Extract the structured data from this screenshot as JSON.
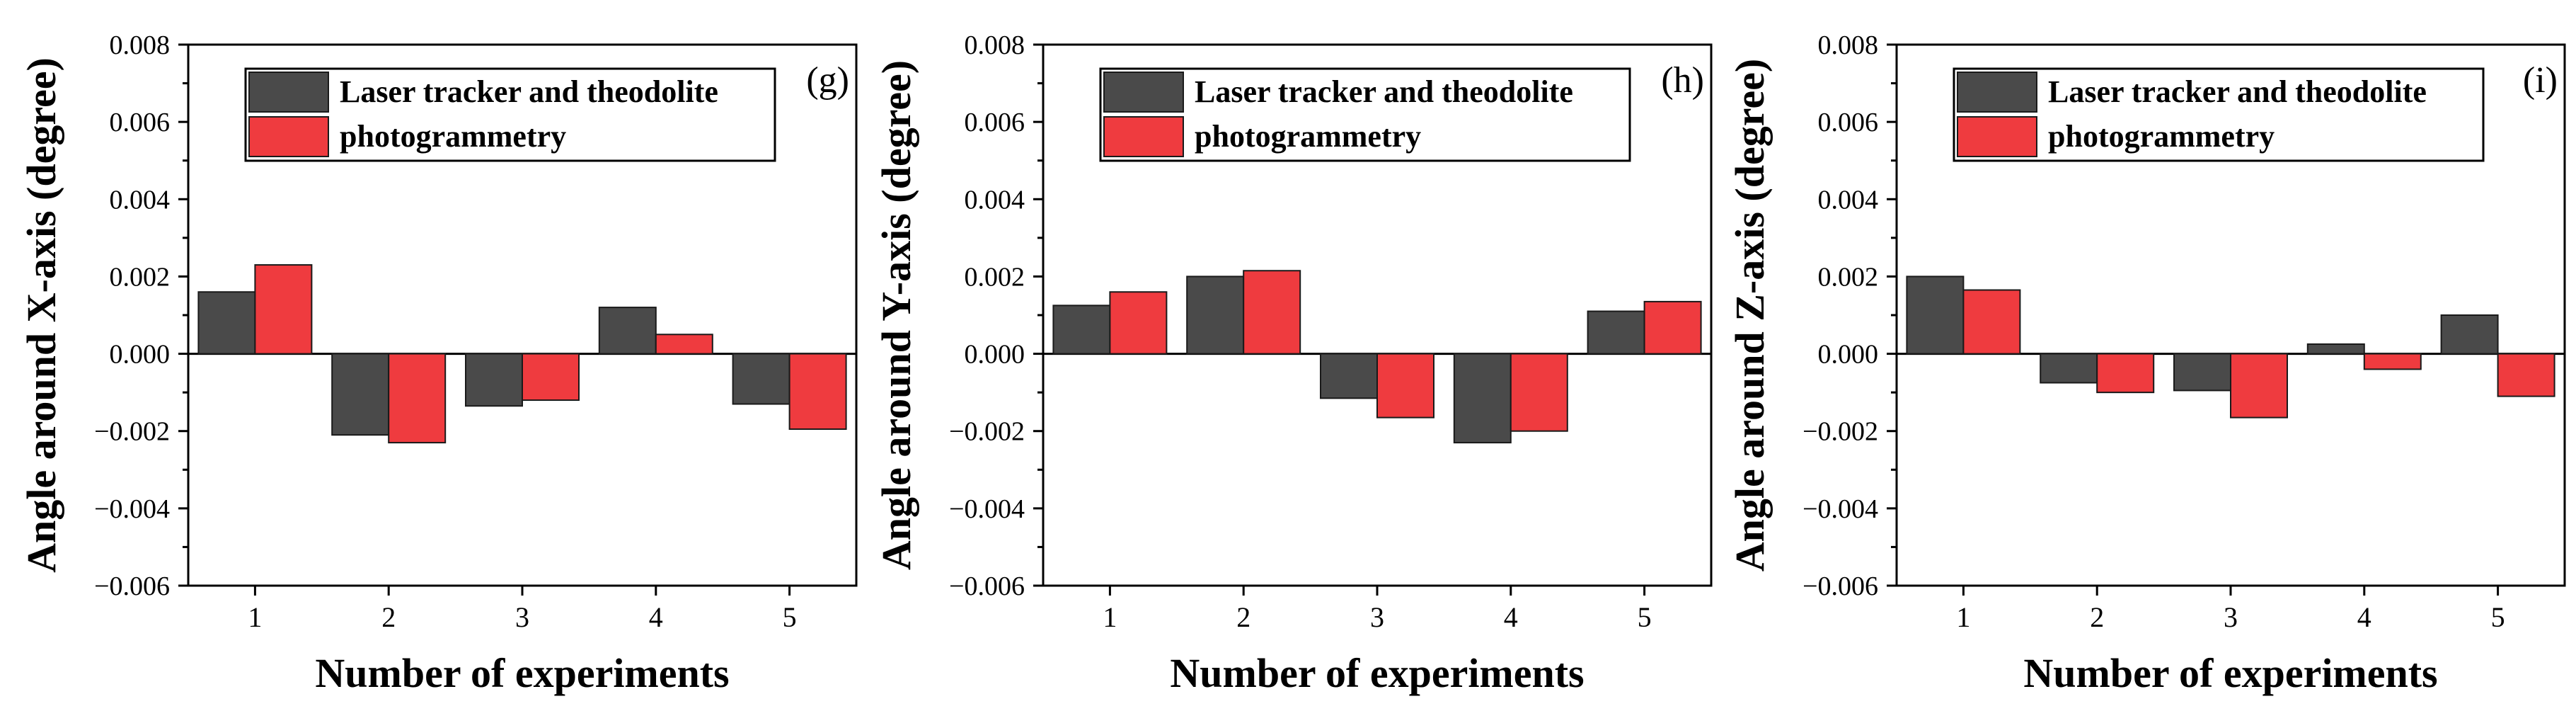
{
  "chart_data": [
    {
      "type": "bar",
      "panel_label": "(g)",
      "xlabel": "Number of experiments",
      "ylabel": "Angle around X-axis (degree)",
      "categories": [
        "1",
        "2",
        "3",
        "4",
        "5"
      ],
      "ylim": [
        -0.006,
        0.008
      ],
      "yticks": [
        -0.006,
        -0.004,
        -0.002,
        0.0,
        0.002,
        0.004,
        0.006,
        0.008
      ],
      "ytick_labels": [
        "−0.006",
        "−0.004",
        "−0.002",
        "0.000",
        "0.002",
        "0.004",
        "0.006",
        "0.008"
      ],
      "legend_position": "top-right",
      "grid": false,
      "series": [
        {
          "name": "Laser tracker and theodolite",
          "color": "#4a4a4a",
          "values": [
            0.0016,
            -0.0021,
            -0.00135,
            0.0012,
            -0.0013
          ]
        },
        {
          "name": "photogrammetry",
          "color": "#ef3b3f",
          "values": [
            0.0023,
            -0.0023,
            -0.0012,
            0.0005,
            -0.00195
          ]
        }
      ]
    },
    {
      "type": "bar",
      "panel_label": "(h)",
      "xlabel": "Number of experiments",
      "ylabel": "Angle around Y-axis (degree)",
      "categories": [
        "1",
        "2",
        "3",
        "4",
        "5"
      ],
      "ylim": [
        -0.006,
        0.008
      ],
      "yticks": [
        -0.006,
        -0.004,
        -0.002,
        0.0,
        0.002,
        0.004,
        0.006,
        0.008
      ],
      "ytick_labels": [
        "−0.006",
        "−0.004",
        "−0.002",
        "0.000",
        "0.002",
        "0.004",
        "0.006",
        "0.008"
      ],
      "legend_position": "top-right",
      "grid": false,
      "series": [
        {
          "name": "Laser tracker and theodolite",
          "color": "#4a4a4a",
          "values": [
            0.00125,
            0.002,
            -0.00115,
            -0.0023,
            0.0011
          ]
        },
        {
          "name": "photogrammetry",
          "color": "#ef3b3f",
          "values": [
            0.0016,
            0.00215,
            -0.00165,
            -0.002,
            0.00135
          ]
        }
      ]
    },
    {
      "type": "bar",
      "panel_label": "(i)",
      "xlabel": "Number of experiments",
      "ylabel": "Angle around Z-axis (degree)",
      "categories": [
        "1",
        "2",
        "3",
        "4",
        "5"
      ],
      "ylim": [
        -0.006,
        0.008
      ],
      "yticks": [
        -0.006,
        -0.004,
        -0.002,
        0.0,
        0.002,
        0.004,
        0.006,
        0.008
      ],
      "ytick_labels": [
        "−0.006",
        "−0.004",
        "−0.002",
        "0.000",
        "0.002",
        "0.004",
        "0.006",
        "0.008"
      ],
      "legend_position": "top-right",
      "grid": false,
      "series": [
        {
          "name": "Laser tracker and theodolite",
          "color": "#4a4a4a",
          "values": [
            0.002,
            -0.00075,
            -0.00095,
            0.00025,
            0.001
          ]
        },
        {
          "name": "photogrammetry",
          "color": "#ef3b3f",
          "values": [
            0.00165,
            -0.001,
            -0.00165,
            -0.0004,
            -0.0011
          ]
        }
      ]
    }
  ]
}
